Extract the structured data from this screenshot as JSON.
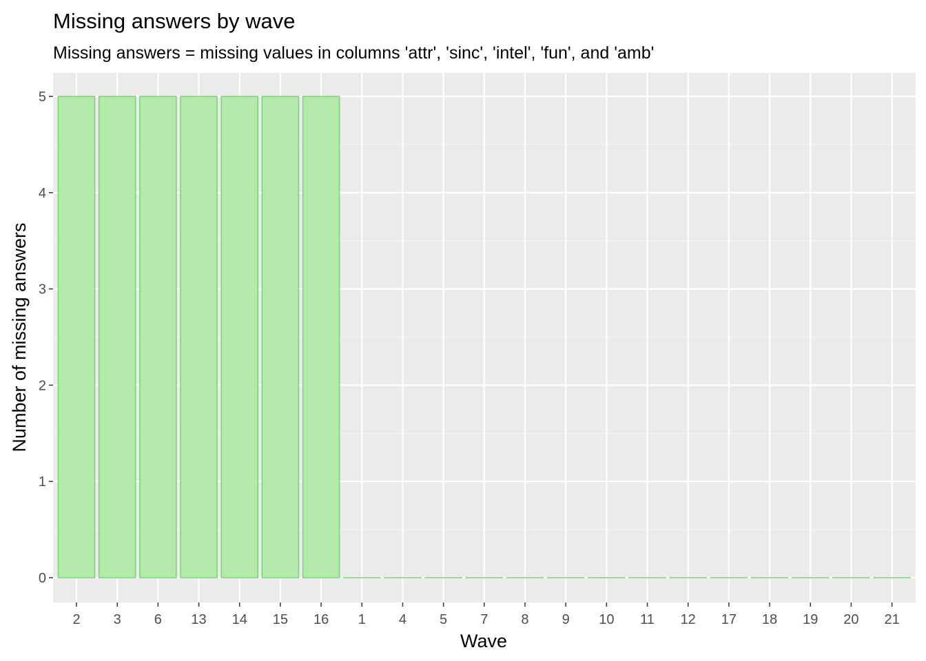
{
  "chart_data": {
    "type": "bar",
    "title": "Missing answers by wave",
    "subtitle": "Missing answers = missing values in columns 'attr', 'sinc', 'intel', 'fun', and 'amb'",
    "xlabel": "Wave",
    "ylabel": "Number of missing answers",
    "categories": [
      "2",
      "3",
      "6",
      "13",
      "14",
      "15",
      "16",
      "1",
      "4",
      "5",
      "7",
      "8",
      "9",
      "10",
      "11",
      "12",
      "17",
      "18",
      "19",
      "20",
      "21"
    ],
    "values": [
      5,
      5,
      5,
      5,
      5,
      5,
      5,
      0,
      0,
      0,
      0,
      0,
      0,
      0,
      0,
      0,
      0,
      0,
      0,
      0,
      0
    ],
    "yticks": [
      0,
      1,
      2,
      3,
      4,
      5
    ],
    "ylim": [
      -0.25,
      5.25
    ],
    "grid": true,
    "legend": "none",
    "colors": {
      "bar_fill": "#b3eaab",
      "bar_stroke": "#7ad675",
      "panel": "#ebebeb",
      "grid_major": "#ffffff",
      "grid_minor": "#f5f5f5",
      "tick_label": "#4d4d4d",
      "tick_mark": "#333333"
    }
  }
}
